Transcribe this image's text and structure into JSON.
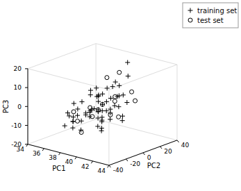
{
  "chart_data": {
    "type": "scatter",
    "xlabel": "PC1",
    "ylabel": "PC2",
    "zlabel": "PC3",
    "xlim": [
      34,
      44
    ],
    "ylim": [
      -40,
      40
    ],
    "zlim": [
      -20,
      20
    ],
    "xticks": [
      34,
      36,
      38,
      40,
      42,
      44
    ],
    "yticks": [
      -40,
      -20,
      0,
      20,
      40
    ],
    "zticks": [
      -20,
      -10,
      0,
      10,
      20
    ],
    "grid": false,
    "legend": "upper right",
    "series": [
      {
        "name": "training set",
        "color": "black",
        "marker": "+",
        "x": [
          37.0,
          37.2,
          37.5,
          37.8,
          38.0,
          38.2,
          38.5,
          38.8,
          39.0,
          39.2,
          39.5,
          39.8,
          40.0,
          40.2,
          40.5,
          36.0,
          36.3,
          37.0,
          37.5,
          38.0,
          38.5,
          39.0,
          39.5,
          40.0,
          40.5,
          41.0,
          41.5,
          42.0,
          38.0,
          38.5,
          39.0,
          39.5,
          40.0,
          40.5,
          41.0,
          37.0,
          37.5,
          38.0,
          38.5,
          39.0,
          36.5,
          37.0,
          38.5,
          39.0,
          39.5,
          40.5,
          41.0,
          42.5,
          38.0,
          38.5,
          39.5,
          40.0,
          41.5,
          38.5,
          39.0,
          40.0,
          37.5,
          38.0,
          39.5,
          40.5
        ],
        "y": [
          -5,
          10,
          0,
          5,
          -10,
          3,
          -8,
          2,
          -5,
          10,
          0,
          -3,
          8,
          -12,
          -5,
          -5,
          -15,
          -20,
          -15,
          5,
          0,
          -5,
          -10,
          -15,
          -5,
          0,
          5,
          -5,
          -25,
          -10,
          0,
          -5,
          10,
          0,
          -20,
          -10,
          -20,
          -10,
          -20,
          -15,
          10,
          5,
          -5,
          -5,
          15,
          10,
          -10,
          -10,
          -25,
          -30,
          -30,
          20,
          -25,
          20,
          30,
          -10,
          -30,
          15,
          5,
          -15
        ],
        "z": [
          0,
          5,
          -5,
          2,
          -5,
          3,
          -2,
          5,
          -3,
          8,
          2,
          -2,
          4,
          -5,
          0,
          -2,
          -5,
          -5,
          -5,
          3,
          1,
          -3,
          -5,
          -8,
          -2,
          1,
          3,
          -2,
          -6,
          -3,
          0,
          -2,
          4,
          1,
          -7,
          -3,
          -5,
          -4,
          -6,
          -4,
          3,
          2,
          -2,
          -2,
          8,
          5,
          -4,
          -3,
          -6,
          -8,
          -8,
          20,
          -7,
          8,
          10,
          -4,
          -8,
          5,
          3,
          -5
        ]
      },
      {
        "name": "test set",
        "color": "black",
        "marker": "o",
        "x": [
          36.5,
          37.5,
          38.5,
          38.8,
          39.0,
          39.5,
          40.0,
          40.5,
          41.5,
          42.5,
          38.0,
          39.0,
          38.5,
          39.5,
          40.5
        ],
        "y": [
          -10,
          -15,
          -20,
          -10,
          -5,
          10,
          5,
          -5,
          -5,
          5,
          -5,
          0,
          10,
          15,
          20
        ],
        "z": [
          -5,
          -8,
          -12,
          -5,
          -2,
          3,
          2,
          -3,
          -3,
          5,
          -2,
          0,
          12,
          15,
          5
        ]
      }
    ]
  }
}
